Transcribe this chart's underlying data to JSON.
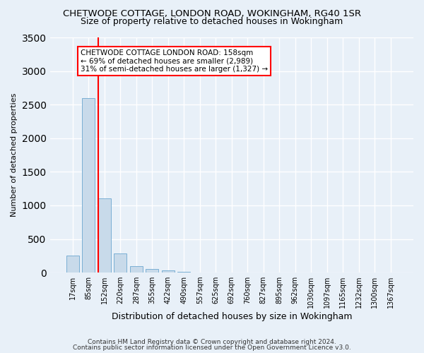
{
  "title": "CHETWODE COTTAGE, LONDON ROAD, WOKINGHAM, RG40 1SR",
  "subtitle": "Size of property relative to detached houses in Wokingham",
  "xlabel": "Distribution of detached houses by size in Wokingham",
  "ylabel": "Number of detached properties",
  "footer_line1": "Contains HM Land Registry data © Crown copyright and database right 2024.",
  "footer_line2": "Contains public sector information licensed under the Open Government Licence v3.0.",
  "bin_labels": [
    "17sqm",
    "85sqm",
    "152sqm",
    "220sqm",
    "287sqm",
    "355sqm",
    "422sqm",
    "490sqm",
    "557sqm",
    "625sqm",
    "692sqm",
    "760sqm",
    "827sqm",
    "895sqm",
    "962sqm",
    "1030sqm",
    "1097sqm",
    "1165sqm",
    "1232sqm",
    "1300sqm",
    "1367sqm"
  ],
  "bar_values": [
    250,
    2600,
    1100,
    280,
    100,
    50,
    30,
    10,
    0,
    0,
    0,
    0,
    0,
    0,
    0,
    0,
    0,
    0,
    0,
    0,
    0
  ],
  "bar_color": "#c8daea",
  "bar_edgecolor": "#7aafd4",
  "marker_color": "red",
  "marker_label": "CHETWODE COTTAGE LONDON ROAD: 158sqm",
  "annotation_line2": "← 69% of detached houses are smaller (2,989)",
  "annotation_line3": "31% of semi-detached houses are larger (1,327) →",
  "ylim": [
    0,
    3500
  ],
  "yticks": [
    0,
    500,
    1000,
    1500,
    2000,
    2500,
    3000,
    3500
  ],
  "bg_color": "#e8f0f8",
  "plot_bg_color": "#e8f0f8",
  "grid_color": "#ffffff"
}
